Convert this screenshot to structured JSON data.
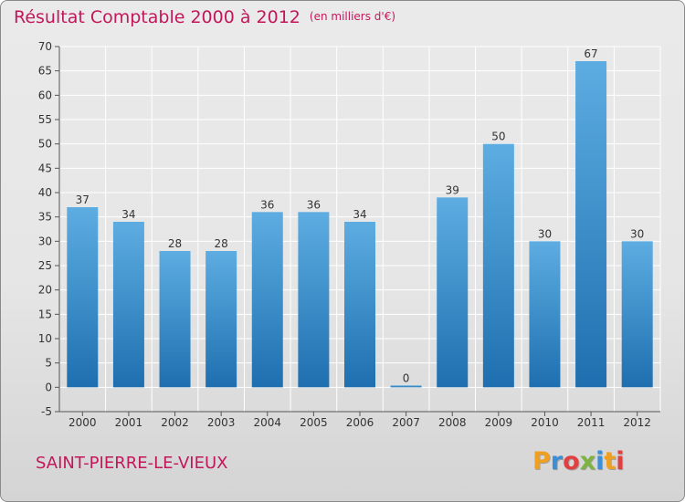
{
  "header": {
    "title": "Résultat Comptable 2000 à 2012",
    "unit": "(en milliers d'€)"
  },
  "footer": {
    "city": "SAINT-PIERRE-LE-VIEUX",
    "logo_letters": [
      "P",
      "r",
      "o",
      "x",
      "i",
      "t",
      "i"
    ],
    "logo_colors": [
      "#f0a020",
      "#3a8fd8",
      "#e04040",
      "#7cb342",
      "#3a8fd8",
      "#f0a020",
      "#e04040"
    ]
  },
  "colors": {
    "title": "#c2185b",
    "bar_top": "#5dade2",
    "bar_bottom": "#1f6fb0",
    "grid": "#ffffff"
  },
  "chart_data": {
    "type": "bar",
    "title": "Résultat Comptable 2000 à 2012",
    "ylabel": "",
    "xlabel": "",
    "categories": [
      "2000",
      "2001",
      "2002",
      "2003",
      "2004",
      "2005",
      "2006",
      "2007",
      "2008",
      "2009",
      "2010",
      "2011",
      "2012"
    ],
    "values": [
      37,
      34,
      28,
      28,
      36,
      36,
      34,
      0,
      39,
      50,
      30,
      67,
      30
    ],
    "ylim": [
      -5,
      70
    ],
    "yticks": [
      -5,
      0,
      5,
      10,
      15,
      20,
      25,
      30,
      35,
      40,
      45,
      50,
      55,
      60,
      65,
      70
    ],
    "grid": true,
    "legend": "none"
  }
}
